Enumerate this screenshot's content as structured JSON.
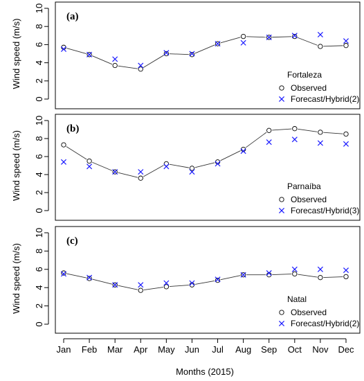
{
  "chart_data": {
    "type": "line",
    "months": [
      "Jan",
      "Feb",
      "Mar",
      "Apr",
      "May",
      "Jun",
      "Jul",
      "Aug",
      "Sep",
      "Oct",
      "Nov",
      "Dec"
    ],
    "xlabel": "Months (2015)",
    "observed_color": "#000000",
    "forecast_color": "#1a1aff",
    "panels": [
      {
        "label": "(a)",
        "location": "Fortaleza",
        "ylabel": "Wind speed (m/s)",
        "ylim": [
          0,
          10
        ],
        "yticks": [
          0,
          2,
          4,
          6,
          8,
          10
        ],
        "series": [
          {
            "name": "Observed",
            "marker": "open-circle",
            "line": true,
            "values": [
              5.7,
              4.9,
              3.7,
              3.3,
              5.0,
              4.9,
              6.1,
              6.9,
              6.8,
              6.9,
              5.8,
              5.9
            ]
          },
          {
            "name": "Forecast/Hybrid(2)",
            "marker": "x",
            "line": false,
            "values": [
              5.5,
              4.9,
              4.4,
              3.7,
              5.1,
              5.0,
              6.1,
              6.2,
              6.8,
              7.0,
              7.1,
              6.4
            ]
          }
        ]
      },
      {
        "label": "(b)",
        "location": "Parnaíba",
        "ylabel": "Wind speed (m/s)",
        "ylim": [
          0,
          10
        ],
        "yticks": [
          0,
          2,
          4,
          6,
          8,
          10
        ],
        "series": [
          {
            "name": "Observed",
            "marker": "open-circle",
            "line": true,
            "values": [
              7.3,
              5.5,
              4.3,
              3.6,
              5.2,
              4.7,
              5.4,
              6.8,
              8.9,
              9.1,
              8.7,
              8.5
            ]
          },
          {
            "name": "Forecast/Hybrid(3)",
            "marker": "x",
            "line": false,
            "values": [
              5.4,
              4.9,
              4.3,
              4.3,
              4.9,
              4.3,
              5.2,
              6.6,
              7.6,
              7.9,
              7.5,
              7.4
            ]
          }
        ]
      },
      {
        "label": "(c)",
        "location": "Natal",
        "ylabel": "Wind speed (m/s)",
        "ylim": [
          0,
          10
        ],
        "yticks": [
          0,
          2,
          4,
          6,
          8,
          10
        ],
        "series": [
          {
            "name": "Observed",
            "marker": "open-circle",
            "line": true,
            "values": [
              5.6,
              5.0,
              4.3,
              3.7,
              4.1,
              4.3,
              4.8,
              5.4,
              5.4,
              5.5,
              5.1,
              5.2
            ]
          },
          {
            "name": "Forecast/Hybrid(2)",
            "marker": "x",
            "line": false,
            "values": [
              5.5,
              5.1,
              4.3,
              4.3,
              4.5,
              4.5,
              4.9,
              5.4,
              5.6,
              6.0,
              6.0,
              5.9
            ]
          }
        ]
      }
    ]
  }
}
